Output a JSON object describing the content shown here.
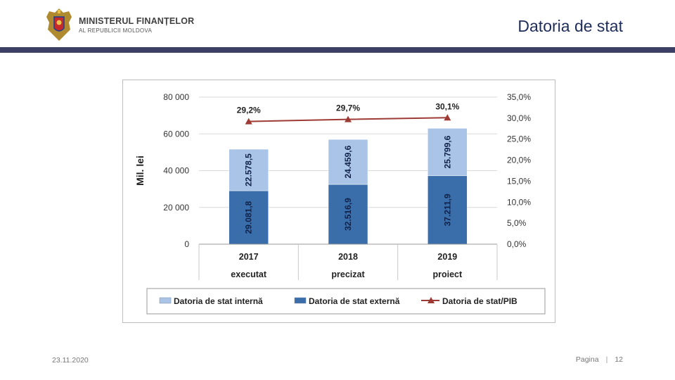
{
  "header": {
    "ministry_name": "MINISTERUL FINANȚELOR",
    "ministry_subtitle": "AL REPUBLICII MOLDOVA",
    "slide_title": "Datoria de stat",
    "colors": {
      "bar": "#3b3f63",
      "title": "#1f2d5a"
    }
  },
  "footer": {
    "date": "23.11.2020",
    "page_label": "Pagina",
    "separator": "|",
    "page_number": "12"
  },
  "chart_data": {
    "type": "bar",
    "stacked": true,
    "categories": [
      "2017",
      "2018",
      "2019"
    ],
    "category_sublabels": [
      "executat",
      "precizat",
      "proiect"
    ],
    "ylabel": "Mil. lei",
    "ylim": [
      0,
      80000
    ],
    "y_ticks": [
      "0",
      "20 000",
      "40 000",
      "60 000",
      "80 000"
    ],
    "y2lim": [
      0,
      35
    ],
    "y2_ticks": [
      "0,0%",
      "5,0%",
      "10,0%",
      "15,0%",
      "20,0%",
      "25,0%",
      "30,0%",
      "35,0%"
    ],
    "grid": true,
    "legend_position": "bottom",
    "series": [
      {
        "name": "Datoria de stat externă",
        "kind": "bar",
        "values": [
          29081.8,
          32516.9,
          37211.9
        ],
        "labels": [
          "29.081,8",
          "32.516,9",
          "37.211,9"
        ],
        "color": "#3a6eaa"
      },
      {
        "name": "Datoria de stat internă",
        "kind": "bar",
        "values": [
          22578.5,
          24459.6,
          25799.6
        ],
        "labels": [
          "22.578,5",
          "24.459,6",
          "25.799,6"
        ],
        "color": "#a9c4e6"
      },
      {
        "name": "Datoria de stat/PIB",
        "kind": "line",
        "axis": "right",
        "values": [
          29.2,
          29.7,
          30.1
        ],
        "labels": [
          "29,2%",
          "29,7%",
          "30,1%"
        ],
        "color": "#9e3a34"
      }
    ],
    "legend_order": [
      "Datoria de stat internă",
      "Datoria de stat externă",
      "Datoria de stat/PIB"
    ]
  }
}
